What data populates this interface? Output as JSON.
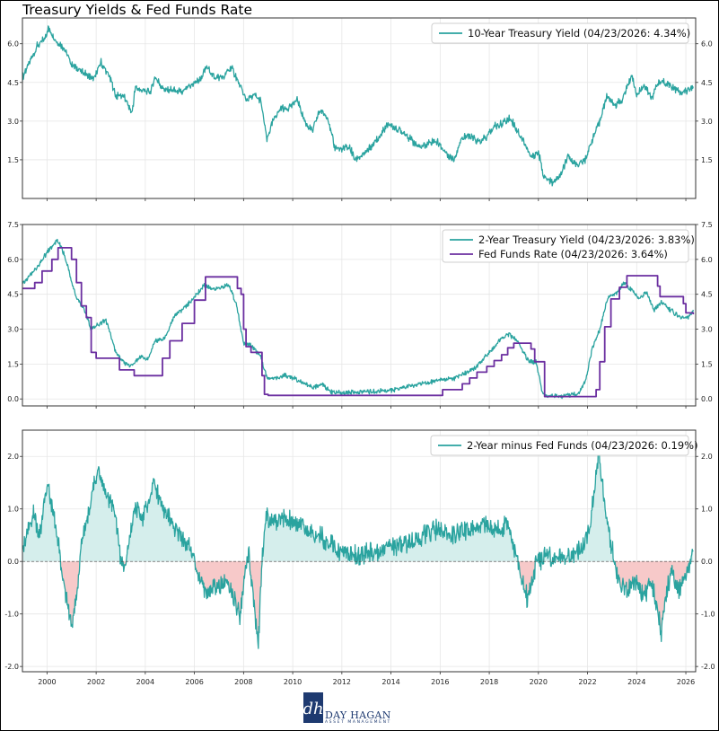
{
  "page_title": "Treasury Yields & Fed Funds Rate",
  "colors": {
    "teal": "#2aa39f",
    "purple": "#6b2fa0",
    "pos_fill": "#d5eeec",
    "neg_fill": "#f7c9c9",
    "grid": "#e6e6e6"
  },
  "x_ticks": [
    "2000",
    "2002",
    "2004",
    "2006",
    "2008",
    "2010",
    "2012",
    "2014",
    "2016",
    "2018",
    "2020",
    "2022",
    "2024",
    "2026"
  ],
  "logo": {
    "name": "DAY HAGAN",
    "sub": "ASSET MANAGEMENT",
    "mark": "dh"
  },
  "chart_data": [
    {
      "type": "line",
      "panel": "top",
      "title": "",
      "xlim": [
        1999.0,
        2026.4
      ],
      "ylim": [
        0.0,
        7.0
      ],
      "y_ticks": [
        "1.5",
        "3.0",
        "4.5",
        "6.0"
      ],
      "y_tick_values": [
        1.5,
        3.0,
        4.5,
        6.0
      ],
      "legend": "top-right",
      "series": [
        {
          "name": "10-Year Treasury Yield (04/23/2026: 4.34%)",
          "color": "#2aa39f",
          "x": [
            1999.0,
            1999.3,
            1999.6,
            1999.9,
            2000.05,
            2000.3,
            2000.7,
            2001.0,
            2001.3,
            2001.6,
            2001.9,
            2002.2,
            2002.5,
            2002.8,
            2003.1,
            2003.45,
            2003.6,
            2003.9,
            2004.2,
            2004.4,
            2004.8,
            2005.1,
            2005.5,
            2005.9,
            2006.2,
            2006.5,
            2006.8,
            2007.2,
            2007.5,
            2007.8,
            2008.1,
            2008.4,
            2008.7,
            2008.95,
            2009.2,
            2009.5,
            2009.8,
            2010.2,
            2010.5,
            2010.8,
            2011.1,
            2011.4,
            2011.7,
            2012.0,
            2012.3,
            2012.55,
            2012.9,
            2013.2,
            2013.6,
            2013.9,
            2014.2,
            2014.6,
            2014.9,
            2015.2,
            2015.6,
            2015.9,
            2016.2,
            2016.55,
            2016.9,
            2017.2,
            2017.6,
            2017.9,
            2018.2,
            2018.5,
            2018.85,
            2019.1,
            2019.4,
            2019.7,
            2020.0,
            2020.2,
            2020.35,
            2020.6,
            2020.9,
            2021.2,
            2021.6,
            2021.9,
            2022.2,
            2022.5,
            2022.8,
            2023.1,
            2023.4,
            2023.8,
            2024.0,
            2024.3,
            2024.6,
            2024.9,
            2025.2,
            2025.5,
            2025.8,
            2026.1,
            2026.3
          ],
          "values": [
            4.7,
            5.3,
            5.9,
            6.2,
            6.6,
            6.2,
            5.8,
            5.2,
            5.0,
            4.8,
            4.6,
            5.3,
            4.8,
            4.0,
            4.0,
            3.3,
            4.3,
            4.2,
            4.1,
            4.7,
            4.2,
            4.2,
            4.1,
            4.4,
            4.6,
            5.1,
            4.7,
            4.7,
            5.1,
            4.5,
            3.8,
            4.0,
            3.8,
            2.3,
            3.0,
            3.5,
            3.5,
            3.8,
            3.0,
            2.6,
            3.4,
            3.2,
            2.0,
            1.9,
            2.0,
            1.5,
            1.7,
            2.0,
            2.5,
            2.9,
            2.7,
            2.5,
            2.2,
            2.0,
            2.2,
            2.2,
            1.8,
            1.5,
            2.4,
            2.4,
            2.2,
            2.4,
            2.8,
            2.9,
            3.1,
            2.7,
            2.2,
            1.6,
            1.8,
            0.9,
            0.7,
            0.6,
            0.9,
            1.6,
            1.3,
            1.5,
            2.3,
            3.0,
            4.0,
            3.6,
            3.8,
            4.8,
            4.0,
            4.4,
            3.9,
            4.5,
            4.5,
            4.3,
            4.1,
            4.2,
            4.34
          ]
        }
      ]
    },
    {
      "type": "line",
      "panel": "middle",
      "title": "",
      "xlim": [
        1999.0,
        2026.4
      ],
      "ylim": [
        -0.3,
        7.5
      ],
      "y_ticks": [
        "0.0",
        "1.5",
        "3.0",
        "4.5",
        "6.0",
        "7.5"
      ],
      "y_tick_values": [
        0.0,
        1.5,
        3.0,
        4.5,
        6.0,
        7.5
      ],
      "legend": "top-right",
      "series": [
        {
          "name": "2-Year Treasury Yield (04/23/2026: 3.83%)",
          "color": "#2aa39f",
          "x": [
            1999.0,
            1999.3,
            1999.7,
            2000.0,
            2000.4,
            2000.6,
            2000.9,
            2001.2,
            2001.5,
            2001.8,
            2002.1,
            2002.4,
            2002.8,
            2003.1,
            2003.4,
            2003.8,
            2004.1,
            2004.4,
            2004.8,
            2005.2,
            2005.6,
            2006.0,
            2006.4,
            2006.8,
            2007.1,
            2007.4,
            2007.7,
            2008.0,
            2008.3,
            2008.7,
            2008.95,
            2009.3,
            2009.7,
            2010.0,
            2010.4,
            2010.8,
            2011.2,
            2011.6,
            2012.0,
            2013.0,
            2014.0,
            2014.6,
            2015.0,
            2015.6,
            2016.0,
            2016.6,
            2017.0,
            2017.5,
            2018.0,
            2018.5,
            2018.8,
            2019.2,
            2019.6,
            2019.9,
            2020.15,
            2020.3,
            2021.0,
            2021.6,
            2021.9,
            2022.2,
            2022.5,
            2022.8,
            2023.2,
            2023.5,
            2023.8,
            2024.1,
            2024.4,
            2024.7,
            2025.0,
            2025.4,
            2025.8,
            2026.1,
            2026.3
          ],
          "values": [
            4.9,
            5.3,
            5.8,
            6.3,
            6.8,
            6.5,
            5.5,
            4.3,
            3.9,
            3.0,
            3.2,
            3.4,
            2.0,
            1.6,
            1.4,
            1.8,
            1.7,
            2.5,
            2.6,
            3.6,
            3.9,
            4.4,
            4.9,
            4.7,
            4.8,
            4.9,
            4.1,
            2.4,
            2.3,
            1.8,
            0.9,
            0.9,
            1.0,
            0.9,
            0.7,
            0.5,
            0.6,
            0.3,
            0.25,
            0.3,
            0.35,
            0.5,
            0.6,
            0.7,
            0.8,
            0.9,
            1.1,
            1.4,
            2.0,
            2.6,
            2.8,
            2.4,
            1.6,
            1.6,
            0.3,
            0.15,
            0.12,
            0.22,
            0.7,
            2.2,
            3.0,
            4.3,
            4.6,
            5.0,
            4.7,
            4.3,
            4.6,
            3.8,
            4.2,
            3.8,
            3.5,
            3.5,
            3.83
          ]
        },
        {
          "name": "Fed Funds Rate (04/23/2026: 3.64%)",
          "color": "#6b2fa0",
          "x": [
            1999.0,
            1999.5,
            1999.8,
            2000.2,
            2000.45,
            2000.9,
            2001.0,
            2001.2,
            2001.4,
            2001.6,
            2001.8,
            2002.0,
            2002.8,
            2002.95,
            2003.5,
            2003.55,
            2004.45,
            2004.7,
            2005.0,
            2005.5,
            2006.0,
            2006.45,
            2007.6,
            2007.75,
            2007.9,
            2008.0,
            2008.1,
            2008.3,
            2008.75,
            2008.85,
            2009.0,
            2015.95,
            2016.1,
            2016.9,
            2017.2,
            2017.5,
            2017.9,
            2018.2,
            2018.5,
            2018.75,
            2019.0,
            2019.55,
            2019.7,
            2019.85,
            2020.15,
            2020.25,
            2022.2,
            2022.35,
            2022.5,
            2022.7,
            2022.95,
            2023.3,
            2023.6,
            2024.7,
            2024.85,
            2024.95,
            2025.7,
            2025.9,
            2026.0,
            2026.3
          ],
          "values": [
            4.75,
            5.0,
            5.5,
            6.0,
            6.5,
            6.5,
            6.0,
            5.0,
            4.0,
            3.5,
            2.0,
            1.75,
            1.75,
            1.25,
            1.25,
            1.0,
            1.0,
            1.75,
            2.5,
            3.25,
            4.25,
            5.25,
            5.25,
            4.75,
            4.5,
            3.0,
            2.25,
            2.0,
            1.0,
            0.2,
            0.15,
            0.15,
            0.4,
            0.65,
            0.9,
            1.15,
            1.4,
            1.65,
            1.9,
            2.2,
            2.4,
            2.4,
            2.15,
            1.6,
            1.6,
            0.1,
            0.1,
            0.4,
            1.6,
            3.1,
            4.3,
            4.8,
            5.3,
            5.3,
            4.85,
            4.4,
            4.4,
            4.1,
            3.7,
            3.64
          ]
        }
      ]
    },
    {
      "type": "area",
      "panel": "bottom",
      "title": "",
      "xlim": [
        1999.0,
        2026.4
      ],
      "ylim": [
        -2.1,
        2.5
      ],
      "y_ticks": [
        "-2.0",
        "-1.0",
        "0.0",
        "1.0",
        "2.0"
      ],
      "y_tick_values": [
        -2.0,
        -1.0,
        0.0,
        1.0,
        2.0
      ],
      "legend": "top-right",
      "series": [
        {
          "name": "2-Year minus Fed Funds (04/23/2026: 0.19%)",
          "color": "#2aa39f",
          "x": [
            1999.0,
            1999.2,
            1999.45,
            1999.7,
            1999.9,
            2000.0,
            2000.3,
            2000.5,
            2000.8,
            2001.0,
            2001.2,
            2001.4,
            2001.7,
            2001.9,
            2002.1,
            2002.4,
            2002.7,
            2002.9,
            2003.1,
            2003.4,
            2003.6,
            2003.9,
            2004.2,
            2004.35,
            2004.6,
            2004.9,
            2005.2,
            2005.6,
            2005.9,
            2006.2,
            2006.5,
            2006.8,
            2007.1,
            2007.4,
            2007.7,
            2007.85,
            2008.0,
            2008.2,
            2008.45,
            2008.6,
            2008.75,
            2008.9,
            2009.1,
            2009.4,
            2009.8,
            2010.2,
            2010.6,
            2011.0,
            2011.4,
            2011.8,
            2012.2,
            2012.6,
            2013.0,
            2013.4,
            2013.8,
            2014.2,
            2014.6,
            2015.0,
            2015.4,
            2015.8,
            2016.2,
            2016.6,
            2017.0,
            2017.4,
            2017.8,
            2018.2,
            2018.5,
            2018.7,
            2018.9,
            2019.1,
            2019.3,
            2019.55,
            2019.75,
            2019.95,
            2020.1,
            2020.25,
            2020.5,
            2020.8,
            2021.1,
            2021.4,
            2021.7,
            2021.9,
            2022.1,
            2022.3,
            2022.45,
            2022.6,
            2022.75,
            2022.9,
            2023.1,
            2023.3,
            2023.6,
            2023.9,
            2024.1,
            2024.3,
            2024.55,
            2024.7,
            2024.85,
            2025.0,
            2025.2,
            2025.4,
            2025.7,
            2025.9,
            2026.05,
            2026.2,
            2026.3
          ],
          "values": [
            0.3,
            0.6,
            0.9,
            0.5,
            1.2,
            1.5,
            0.8,
            0.2,
            -0.8,
            -1.2,
            -0.6,
            0.3,
            1.0,
            1.4,
            1.8,
            1.2,
            1.1,
            0.4,
            -0.2,
            0.5,
            1.1,
            0.8,
            1.2,
            1.6,
            1.1,
            0.9,
            0.6,
            0.4,
            0.2,
            -0.3,
            -0.6,
            -0.4,
            -0.5,
            -0.4,
            -0.8,
            -1.1,
            -0.5,
            0.2,
            -0.9,
            -1.6,
            0.0,
            0.9,
            0.8,
            0.8,
            0.8,
            0.7,
            0.6,
            0.5,
            0.4,
            0.2,
            0.15,
            0.1,
            0.15,
            0.2,
            0.25,
            0.3,
            0.35,
            0.4,
            0.5,
            0.6,
            0.55,
            0.5,
            0.55,
            0.6,
            0.7,
            0.6,
            0.55,
            0.8,
            0.4,
            0.1,
            -0.3,
            -0.7,
            -0.4,
            0.1,
            0.0,
            0.1,
            0.05,
            0.1,
            0.1,
            0.15,
            0.25,
            0.4,
            0.7,
            1.4,
            2.1,
            1.5,
            0.9,
            0.5,
            0.0,
            -0.4,
            -0.6,
            -0.4,
            -0.5,
            -0.7,
            -0.4,
            -0.6,
            -0.9,
            -1.4,
            -0.6,
            -0.2,
            -0.6,
            -0.4,
            -0.2,
            0.0,
            0.19
          ]
        }
      ]
    }
  ]
}
